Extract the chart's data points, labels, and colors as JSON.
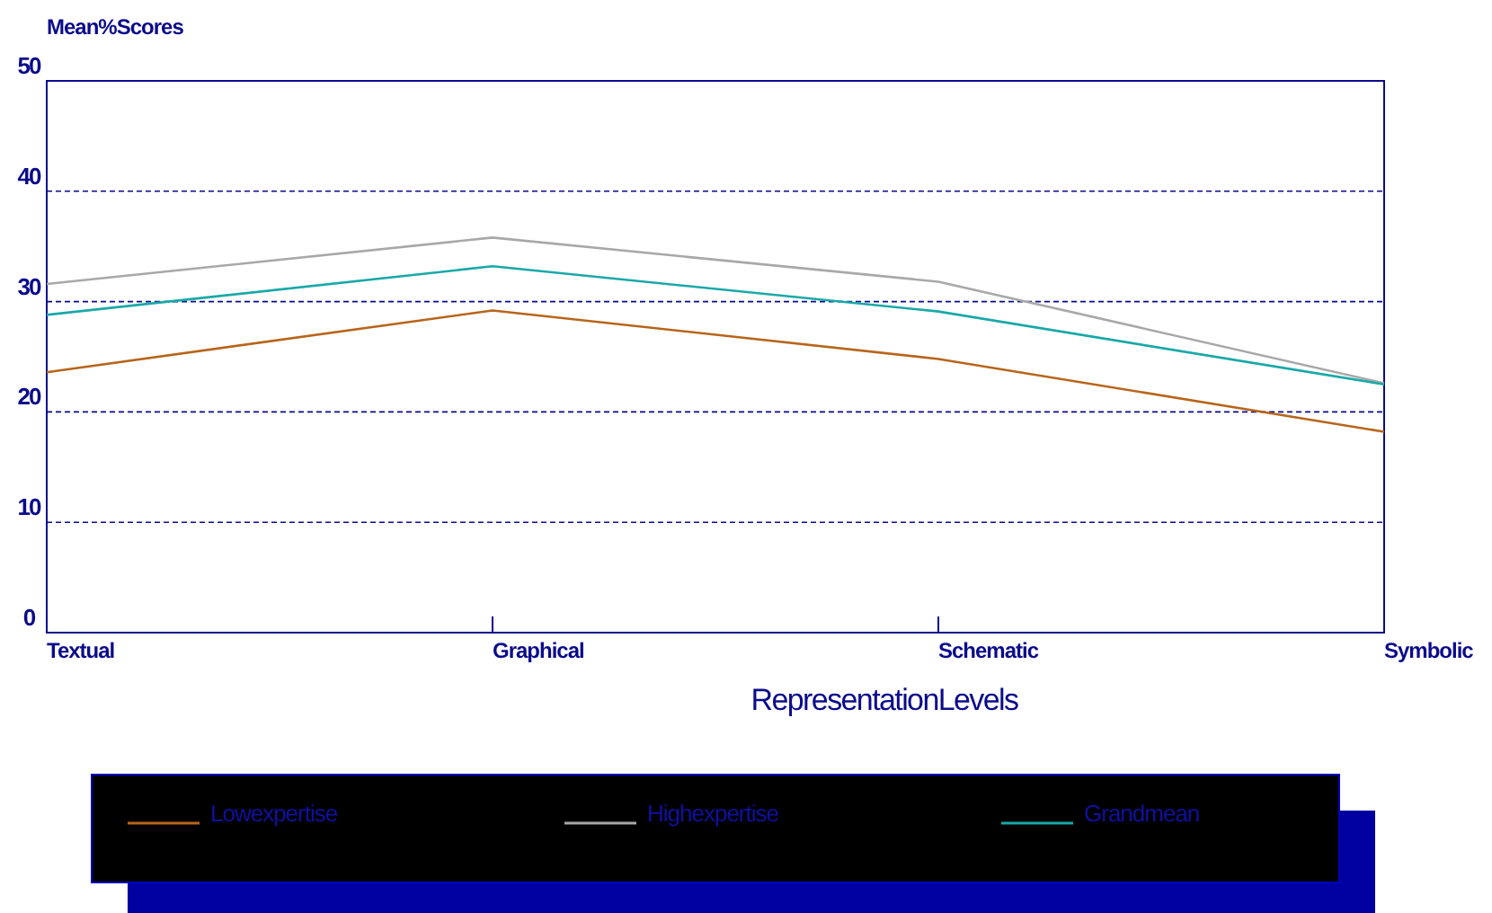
{
  "chart_data": {
    "type": "line",
    "ylabel": "Mean%Scores",
    "xlabel": "RepresentationLevels",
    "categories": [
      "Textual",
      "Graphical",
      "Schematic",
      "Symbolic"
    ],
    "ylim": [
      0,
      50
    ],
    "yticks": [
      0,
      10,
      20,
      30,
      40,
      50
    ],
    "grid": "y",
    "legend": "bottom",
    "line_style": "solid",
    "marker": "none",
    "series": [
      {
        "name": "Lowexpertise",
        "color": "#b8651b",
        "values": [
          23.6,
          29.2,
          24.8,
          18.2
        ]
      },
      {
        "name": "Highexpertise",
        "color": "#a8a8a8",
        "values": [
          31.6,
          35.8,
          31.8,
          22.6
        ]
      },
      {
        "name": "Grandmean",
        "color": "#1aa8a8",
        "values": [
          28.8,
          33.2,
          29.1,
          22.5
        ]
      }
    ]
  }
}
